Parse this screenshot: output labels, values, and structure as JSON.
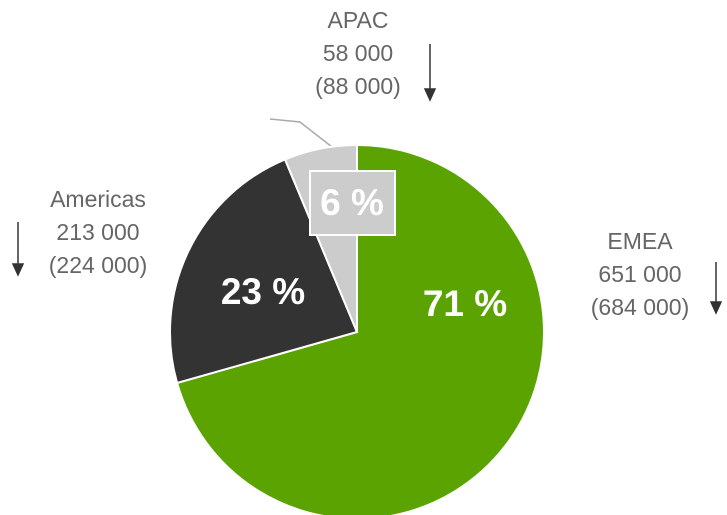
{
  "chart_data": {
    "type": "pie",
    "categories": [
      "EMEA",
      "Americas",
      "APAC"
    ],
    "values": [
      651000,
      213000,
      58000
    ],
    "value_labels": [
      "651 000",
      "213 000",
      "58 000"
    ],
    "previous_values": [
      684000,
      224000,
      88000
    ],
    "previous_labels": [
      "(684 000)",
      "(224 000)",
      "(88 000)"
    ],
    "percent_labels": [
      "71 %",
      "23 %",
      "6 %"
    ],
    "colors": [
      "#5ba300",
      "#333333",
      "#cccccc"
    ]
  }
}
